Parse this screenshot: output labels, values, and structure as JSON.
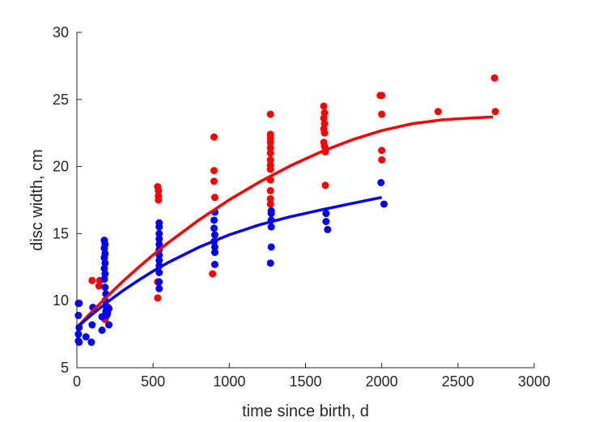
{
  "chart_data": {
    "type": "scatter",
    "title": "",
    "xlabel": "time since birth, d",
    "ylabel": "disc width, cm",
    "xlim": [
      0,
      3000
    ],
    "ylim": [
      5,
      30
    ],
    "xticks": [
      0,
      500,
      1000,
      1500,
      2000,
      2500,
      3000
    ],
    "yticks": [
      5,
      10,
      15,
      20,
      25,
      30
    ],
    "grid": false,
    "box": false,
    "series": [
      {
        "name": "red",
        "color": "#ff0000",
        "points": [
          [
            100,
            11.5
          ],
          [
            145,
            11.1
          ],
          [
            150,
            11.5
          ],
          [
            165,
            8.8
          ],
          [
            185,
            8.6
          ],
          [
            200,
            9.0
          ],
          [
            205,
            9.5
          ],
          [
            530,
            18.5
          ],
          [
            535,
            18.2
          ],
          [
            535,
            17.8
          ],
          [
            535,
            17.5
          ],
          [
            530,
            11.4
          ],
          [
            530,
            10.2
          ],
          [
            900,
            22.2
          ],
          [
            900,
            19.7
          ],
          [
            900,
            18.9
          ],
          [
            905,
            17.7
          ],
          [
            890,
            12.0
          ],
          [
            1270,
            23.9
          ],
          [
            1270,
            22.4
          ],
          [
            1270,
            22.1
          ],
          [
            1270,
            21.8
          ],
          [
            1270,
            21.4
          ],
          [
            1270,
            21.0
          ],
          [
            1270,
            20.5
          ],
          [
            1270,
            20.1
          ],
          [
            1270,
            19.8
          ],
          [
            1270,
            19.0
          ],
          [
            1270,
            18.2
          ],
          [
            1270,
            17.6
          ],
          [
            1270,
            17.2
          ],
          [
            1620,
            24.5
          ],
          [
            1625,
            24.0
          ],
          [
            1620,
            23.6
          ],
          [
            1625,
            23.2
          ],
          [
            1620,
            22.8
          ],
          [
            1625,
            22.5
          ],
          [
            1620,
            21.8
          ],
          [
            1625,
            21.5
          ],
          [
            1630,
            21.1
          ],
          [
            1630,
            18.6
          ],
          [
            1990,
            25.3
          ],
          [
            2000,
            25.3
          ],
          [
            2000,
            23.9
          ],
          [
            2000,
            21.2
          ],
          [
            2000,
            20.5
          ],
          [
            2370,
            24.1
          ],
          [
            2740,
            26.6
          ],
          [
            2745,
            24.1
          ]
        ],
        "fit": [
          [
            10,
            8.12
          ],
          [
            100,
            9.19
          ],
          [
            200,
            10.33
          ],
          [
            300,
            11.42
          ],
          [
            400,
            12.44
          ],
          [
            500,
            13.41
          ],
          [
            600,
            14.33
          ],
          [
            800,
            16.01
          ],
          [
            1000,
            17.52
          ],
          [
            1200,
            18.86
          ],
          [
            1400,
            20.05
          ],
          [
            1600,
            21.09
          ],
          [
            1800,
            21.97
          ],
          [
            2000,
            22.68
          ],
          [
            2200,
            23.19
          ],
          [
            2400,
            23.49
          ],
          [
            2600,
            23.62
          ],
          [
            2730,
            23.7
          ]
        ]
      },
      {
        "name": "blue",
        "color": "#0000ff",
        "points": [
          [
            10,
            9.8
          ],
          [
            15,
            9.8
          ],
          [
            10,
            8.9
          ],
          [
            15,
            8.0
          ],
          [
            10,
            7.5
          ],
          [
            10,
            7.0
          ],
          [
            15,
            6.9
          ],
          [
            60,
            7.3
          ],
          [
            95,
            6.9
          ],
          [
            100,
            8.2
          ],
          [
            105,
            9.5
          ],
          [
            165,
            7.8
          ],
          [
            165,
            8.8
          ],
          [
            180,
            14.5
          ],
          [
            185,
            14.2
          ],
          [
            180,
            13.9
          ],
          [
            185,
            13.5
          ],
          [
            180,
            13.2
          ],
          [
            185,
            12.8
          ],
          [
            180,
            12.4
          ],
          [
            185,
            12.0
          ],
          [
            180,
            11.6
          ],
          [
            185,
            11.0
          ],
          [
            190,
            10.5
          ],
          [
            185,
            10.0
          ],
          [
            190,
            9.6
          ],
          [
            190,
            9.2
          ],
          [
            195,
            8.9
          ],
          [
            200,
            9.1
          ],
          [
            210,
            9.4
          ],
          [
            210,
            8.2
          ],
          [
            540,
            15.8
          ],
          [
            540,
            15.5
          ],
          [
            540,
            15.0
          ],
          [
            540,
            14.6
          ],
          [
            540,
            14.2
          ],
          [
            540,
            13.8
          ],
          [
            540,
            13.4
          ],
          [
            540,
            13.0
          ],
          [
            540,
            12.6
          ],
          [
            540,
            12.1
          ],
          [
            540,
            11.4
          ],
          [
            540,
            10.9
          ],
          [
            905,
            16.6
          ],
          [
            900,
            16.0
          ],
          [
            900,
            15.4
          ],
          [
            905,
            14.9
          ],
          [
            900,
            14.4
          ],
          [
            905,
            14.0
          ],
          [
            905,
            13.6
          ],
          [
            905,
            12.7
          ],
          [
            1275,
            16.7
          ],
          [
            1275,
            16.5
          ],
          [
            1275,
            16.0
          ],
          [
            1275,
            15.5
          ],
          [
            1275,
            14.0
          ],
          [
            1270,
            12.8
          ],
          [
            1635,
            16.5
          ],
          [
            1635,
            15.9
          ],
          [
            1645,
            15.3
          ],
          [
            1995,
            18.8
          ],
          [
            2015,
            17.2
          ]
        ],
        "fit": [
          [
            10,
            8.1
          ],
          [
            100,
            8.98
          ],
          [
            200,
            9.89
          ],
          [
            300,
            10.73
          ],
          [
            400,
            11.49
          ],
          [
            500,
            12.2
          ],
          [
            600,
            12.85
          ],
          [
            800,
            13.98
          ],
          [
            1000,
            14.91
          ],
          [
            1200,
            15.66
          ],
          [
            1400,
            16.26
          ],
          [
            1600,
            16.76
          ],
          [
            1800,
            17.24
          ],
          [
            2000,
            17.7
          ]
        ]
      }
    ]
  }
}
